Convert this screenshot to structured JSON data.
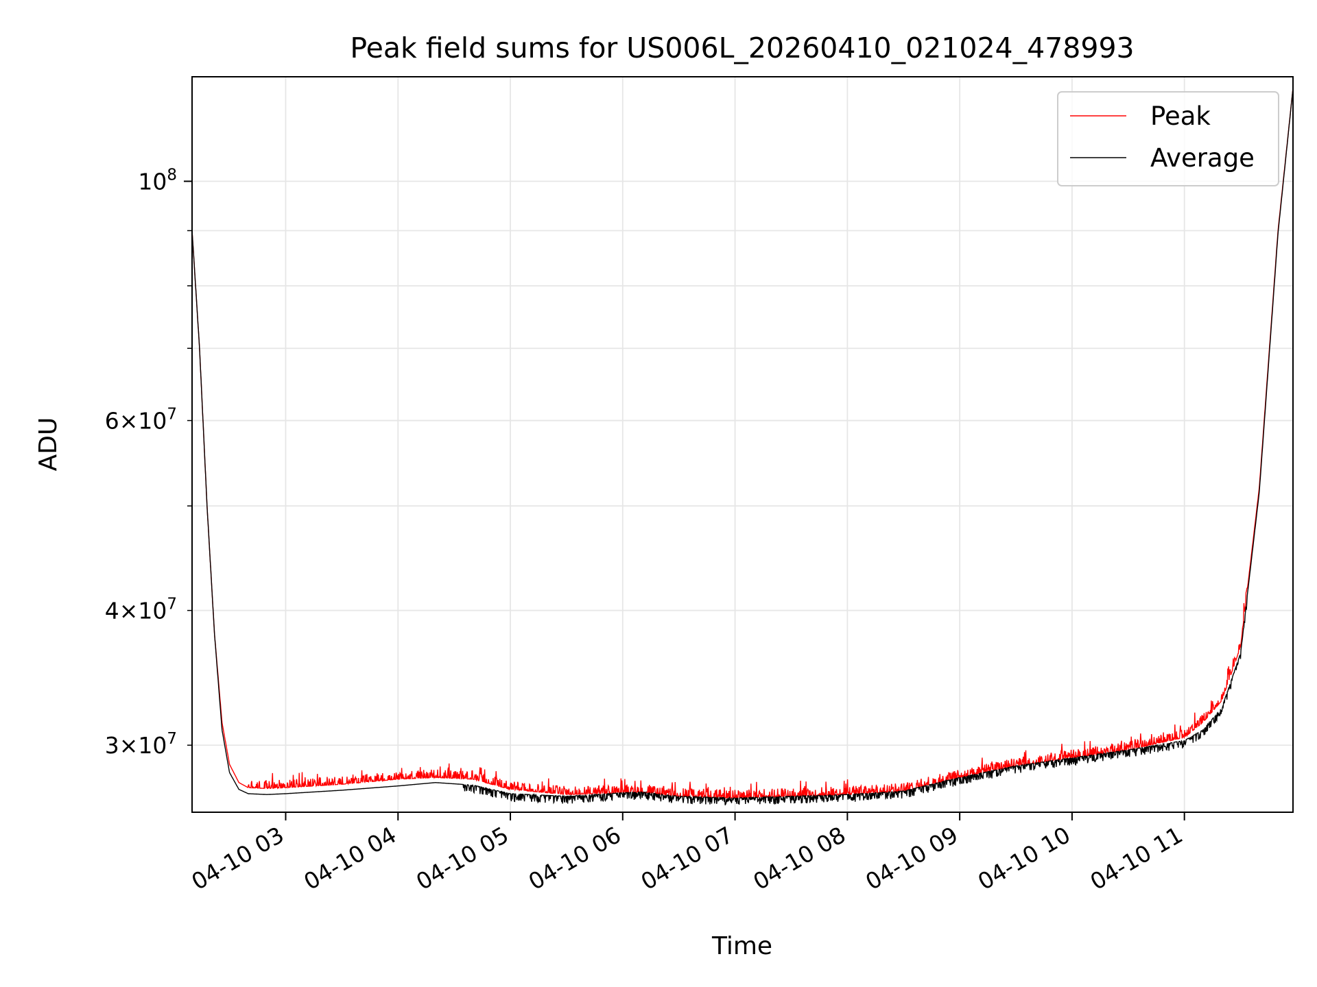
{
  "chart_data": {
    "type": "line",
    "title": "Peak field sums for US006L_20260410_021024_478993",
    "xlabel": "Time",
    "ylabel": "ADU",
    "yscale": "log",
    "grid": true,
    "legend_placement": "top-right",
    "x_range": [
      "2026-04-10 02:10",
      "2026-04-10 11:58"
    ],
    "ylim": [
      26000000,
      125000000
    ],
    "x_ticks": [
      {
        "value": "2026-04-10 03:00",
        "label": "04-10 03"
      },
      {
        "value": "2026-04-10 04:00",
        "label": "04-10 04"
      },
      {
        "value": "2026-04-10 05:00",
        "label": "04-10 05"
      },
      {
        "value": "2026-04-10 06:00",
        "label": "04-10 06"
      },
      {
        "value": "2026-04-10 07:00",
        "label": "04-10 07"
      },
      {
        "value": "2026-04-10 08:00",
        "label": "04-10 08"
      },
      {
        "value": "2026-04-10 09:00",
        "label": "04-10 09"
      },
      {
        "value": "2026-04-10 10:00",
        "label": "04-10 10"
      },
      {
        "value": "2026-04-10 11:00",
        "label": "04-10 11"
      }
    ],
    "y_major_ticks": [
      {
        "value": 100000000,
        "mantissa": "",
        "exp": "8"
      }
    ],
    "y_minor_ticks": [
      {
        "value": 30000000,
        "mantissa": "3",
        "exp": "7"
      },
      {
        "value": 40000000,
        "mantissa": "4",
        "exp": "7"
      },
      {
        "value": 60000000,
        "mantissa": "6",
        "exp": "7"
      },
      {
        "value": 50000000,
        "mantissa": "",
        "exp": ""
      },
      {
        "value": 70000000,
        "mantissa": "",
        "exp": ""
      },
      {
        "value": 80000000,
        "mantissa": "",
        "exp": ""
      },
      {
        "value": 90000000,
        "mantissa": "",
        "exp": ""
      }
    ],
    "series": [
      {
        "name": "Peak",
        "color": "#ff0000",
        "noise": "upward",
        "x": [
          "2026-04-10 02:10",
          "2026-04-10 02:14",
          "2026-04-10 02:18",
          "2026-04-10 02:22",
          "2026-04-10 02:26",
          "2026-04-10 02:30",
          "2026-04-10 02:35",
          "2026-04-10 02:40",
          "2026-04-10 02:50",
          "2026-04-10 03:00",
          "2026-04-10 03:30",
          "2026-04-10 04:00",
          "2026-04-10 04:20",
          "2026-04-10 04:40",
          "2026-04-10 05:00",
          "2026-04-10 05:30",
          "2026-04-10 06:00",
          "2026-04-10 06:10",
          "2026-04-10 06:30",
          "2026-04-10 07:00",
          "2026-04-10 07:30",
          "2026-04-10 08:00",
          "2026-04-10 08:30",
          "2026-04-10 09:00",
          "2026-04-10 09:30",
          "2026-04-10 10:00",
          "2026-04-10 10:30",
          "2026-04-10 11:00",
          "2026-04-10 11:10",
          "2026-04-10 11:20",
          "2026-04-10 11:30",
          "2026-04-10 11:40",
          "2026-04-10 11:50",
          "2026-04-10 11:58"
        ],
        "y": [
          90000000,
          70000000,
          50000000,
          38000000,
          31500000,
          28800000,
          27700000,
          27400000,
          27350000,
          27400000,
          27600000,
          27900000,
          28000000,
          27900000,
          27300000,
          27000000,
          27100000,
          27150000,
          26900000,
          26800000,
          26900000,
          27000000,
          27200000,
          28000000,
          28700000,
          29200000,
          29700000,
          30500000,
          31500000,
          33000000,
          37000000,
          52000000,
          90000000,
          122000000
        ]
      },
      {
        "name": "Average",
        "color": "#000000",
        "noise": "downward",
        "x": [
          "2026-04-10 02:10",
          "2026-04-10 02:14",
          "2026-04-10 02:18",
          "2026-04-10 02:22",
          "2026-04-10 02:26",
          "2026-04-10 02:30",
          "2026-04-10 02:35",
          "2026-04-10 02:40",
          "2026-04-10 02:50",
          "2026-04-10 03:00",
          "2026-04-10 03:30",
          "2026-04-10 04:00",
          "2026-04-10 04:20",
          "2026-04-10 04:40",
          "2026-04-10 05:00",
          "2026-04-10 05:30",
          "2026-04-10 06:00",
          "2026-04-10 06:10",
          "2026-04-10 06:30",
          "2026-04-10 07:00",
          "2026-04-10 07:30",
          "2026-04-10 08:00",
          "2026-04-10 08:30",
          "2026-04-10 09:00",
          "2026-04-10 09:30",
          "2026-04-10 10:00",
          "2026-04-10 10:30",
          "2026-04-10 11:00",
          "2026-04-10 11:10",
          "2026-04-10 11:20",
          "2026-04-10 11:30",
          "2026-04-10 11:40",
          "2026-04-10 11:50",
          "2026-04-10 11:58"
        ],
        "y": [
          90000000,
          70000000,
          50000000,
          38000000,
          31000000,
          28300000,
          27300000,
          27050000,
          27000000,
          27050000,
          27250000,
          27500000,
          27700000,
          27550000,
          27050000,
          26900000,
          27100000,
          27150000,
          26900000,
          26800000,
          26900000,
          27000000,
          27200000,
          28000000,
          28700000,
          29200000,
          29700000,
          30300000,
          31000000,
          32500000,
          36500000,
          51500000,
          89500000,
          122000000
        ]
      }
    ]
  }
}
